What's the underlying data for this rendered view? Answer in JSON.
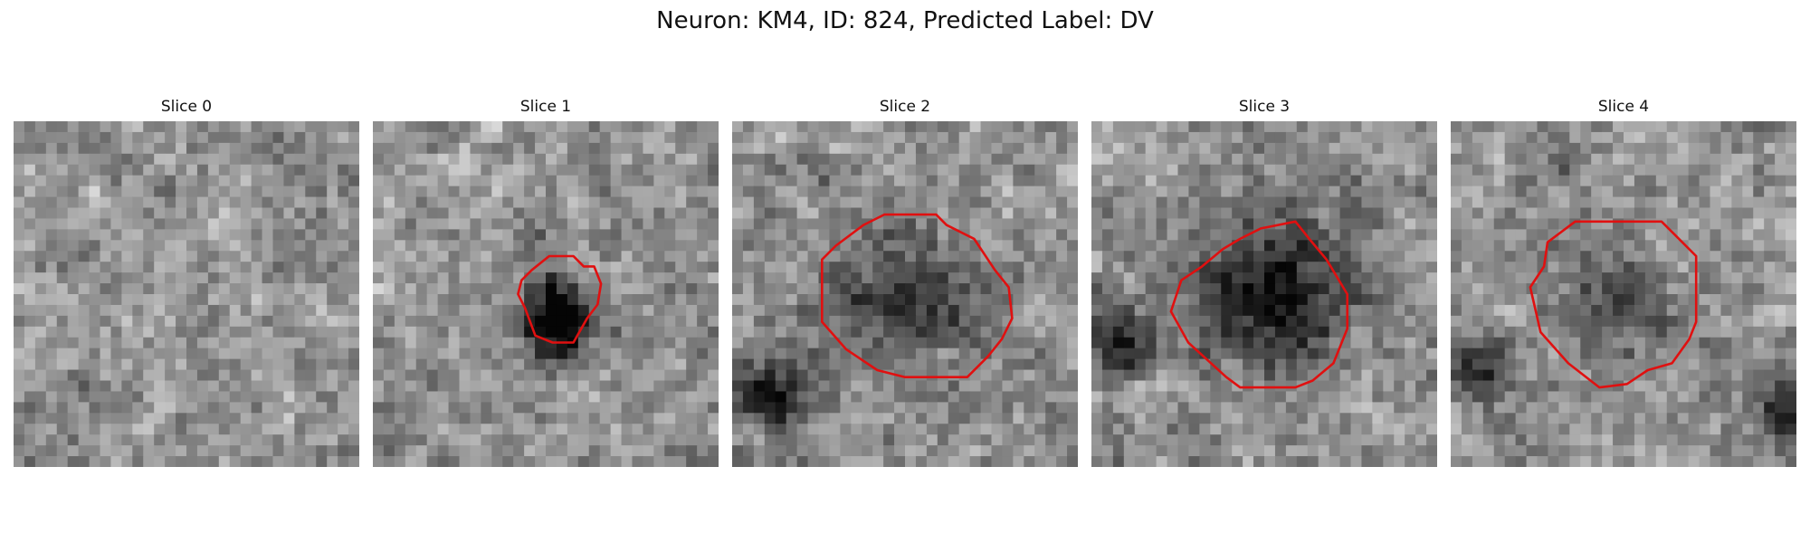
{
  "figure": {
    "title": "Neuron: KM4, ID: 824, Predicted Label: DV"
  },
  "panels": [
    {
      "title": "Slice 0"
    },
    {
      "title": "Slice 1"
    },
    {
      "title": "Slice 2"
    },
    {
      "title": "Slice 3"
    },
    {
      "title": "Slice 4"
    }
  ],
  "colors": {
    "contour": "#e01010",
    "background": "#ffffff"
  }
}
